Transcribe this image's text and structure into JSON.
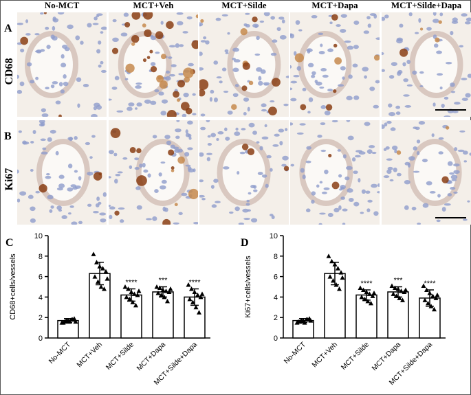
{
  "column_headers": [
    "No-MCT",
    "MCT+Veh",
    "MCT+Silde",
    "MCT+Dapa",
    "MCT+Silde+Dapa"
  ],
  "rows": [
    {
      "letter": "A",
      "label": "CD68"
    },
    {
      "letter": "B",
      "label": "Ki67"
    }
  ],
  "chart_data": [
    {
      "type": "bar",
      "letter": "C",
      "y_label": "CD68+cells/vessels",
      "categories": [
        "No-MCT",
        "MCT+Veh",
        "MCT+Silde",
        "MCT+Dapa",
        "MCT+Silde+Dapa"
      ],
      "values": [
        1.7,
        6.3,
        4.2,
        4.5,
        4.0
      ],
      "errors": [
        0.2,
        1.1,
        0.6,
        0.5,
        0.8
      ],
      "significance": [
        null,
        null,
        "****",
        "***",
        "****"
      ],
      "points": [
        [
          1.5,
          1.6,
          1.7,
          1.8,
          1.9,
          1.5,
          1.7,
          1.6,
          1.8,
          1.6
        ],
        [
          8.2,
          7.4,
          7.0,
          6.8,
          6.5,
          6.0,
          5.5,
          5.0,
          4.8,
          5.8
        ],
        [
          5.0,
          4.8,
          4.5,
          4.3,
          4.2,
          4.0,
          3.8,
          3.5,
          3.2,
          4.6
        ],
        [
          5.0,
          4.9,
          4.7,
          4.6,
          4.5,
          4.4,
          4.2,
          4.0,
          3.6,
          4.8
        ],
        [
          5.2,
          4.8,
          4.5,
          4.2,
          4.0,
          3.8,
          3.5,
          3.0,
          2.5,
          4.3
        ]
      ],
      "ylim": [
        0,
        10
      ],
      "yticks": [
        0,
        2,
        4,
        6,
        8,
        10
      ],
      "color": "#ffffff"
    },
    {
      "type": "bar",
      "letter": "D",
      "y_label": "Ki67+cells/vessels",
      "categories": [
        "No-MCT",
        "MCT+Veh",
        "MCT+Silde",
        "MCT+Dapa",
        "MCT+Silde+Dapa"
      ],
      "values": [
        1.7,
        6.3,
        4.2,
        4.5,
        3.9
      ],
      "errors": [
        0.2,
        1.1,
        0.5,
        0.5,
        0.8
      ],
      "significance": [
        null,
        null,
        "****",
        "***",
        "****"
      ],
      "points": [
        [
          1.5,
          1.6,
          1.7,
          1.8,
          1.9,
          1.6,
          1.7,
          1.5,
          1.8,
          1.7
        ],
        [
          8.0,
          7.5,
          7.2,
          6.8,
          6.4,
          6.0,
          5.6,
          5.2,
          4.8,
          5.9
        ],
        [
          4.9,
          4.7,
          4.5,
          4.3,
          4.1,
          4.0,
          3.8,
          3.6,
          3.4,
          4.4
        ],
        [
          5.1,
          4.9,
          4.8,
          4.6,
          4.5,
          4.3,
          4.1,
          3.9,
          3.7,
          4.7
        ],
        [
          5.1,
          4.7,
          4.4,
          4.1,
          3.9,
          3.7,
          3.4,
          3.1,
          2.8,
          4.2
        ]
      ],
      "ylim": [
        0,
        10
      ],
      "yticks": [
        0,
        2,
        4,
        6,
        8,
        10
      ],
      "color": "#ffffff"
    }
  ]
}
